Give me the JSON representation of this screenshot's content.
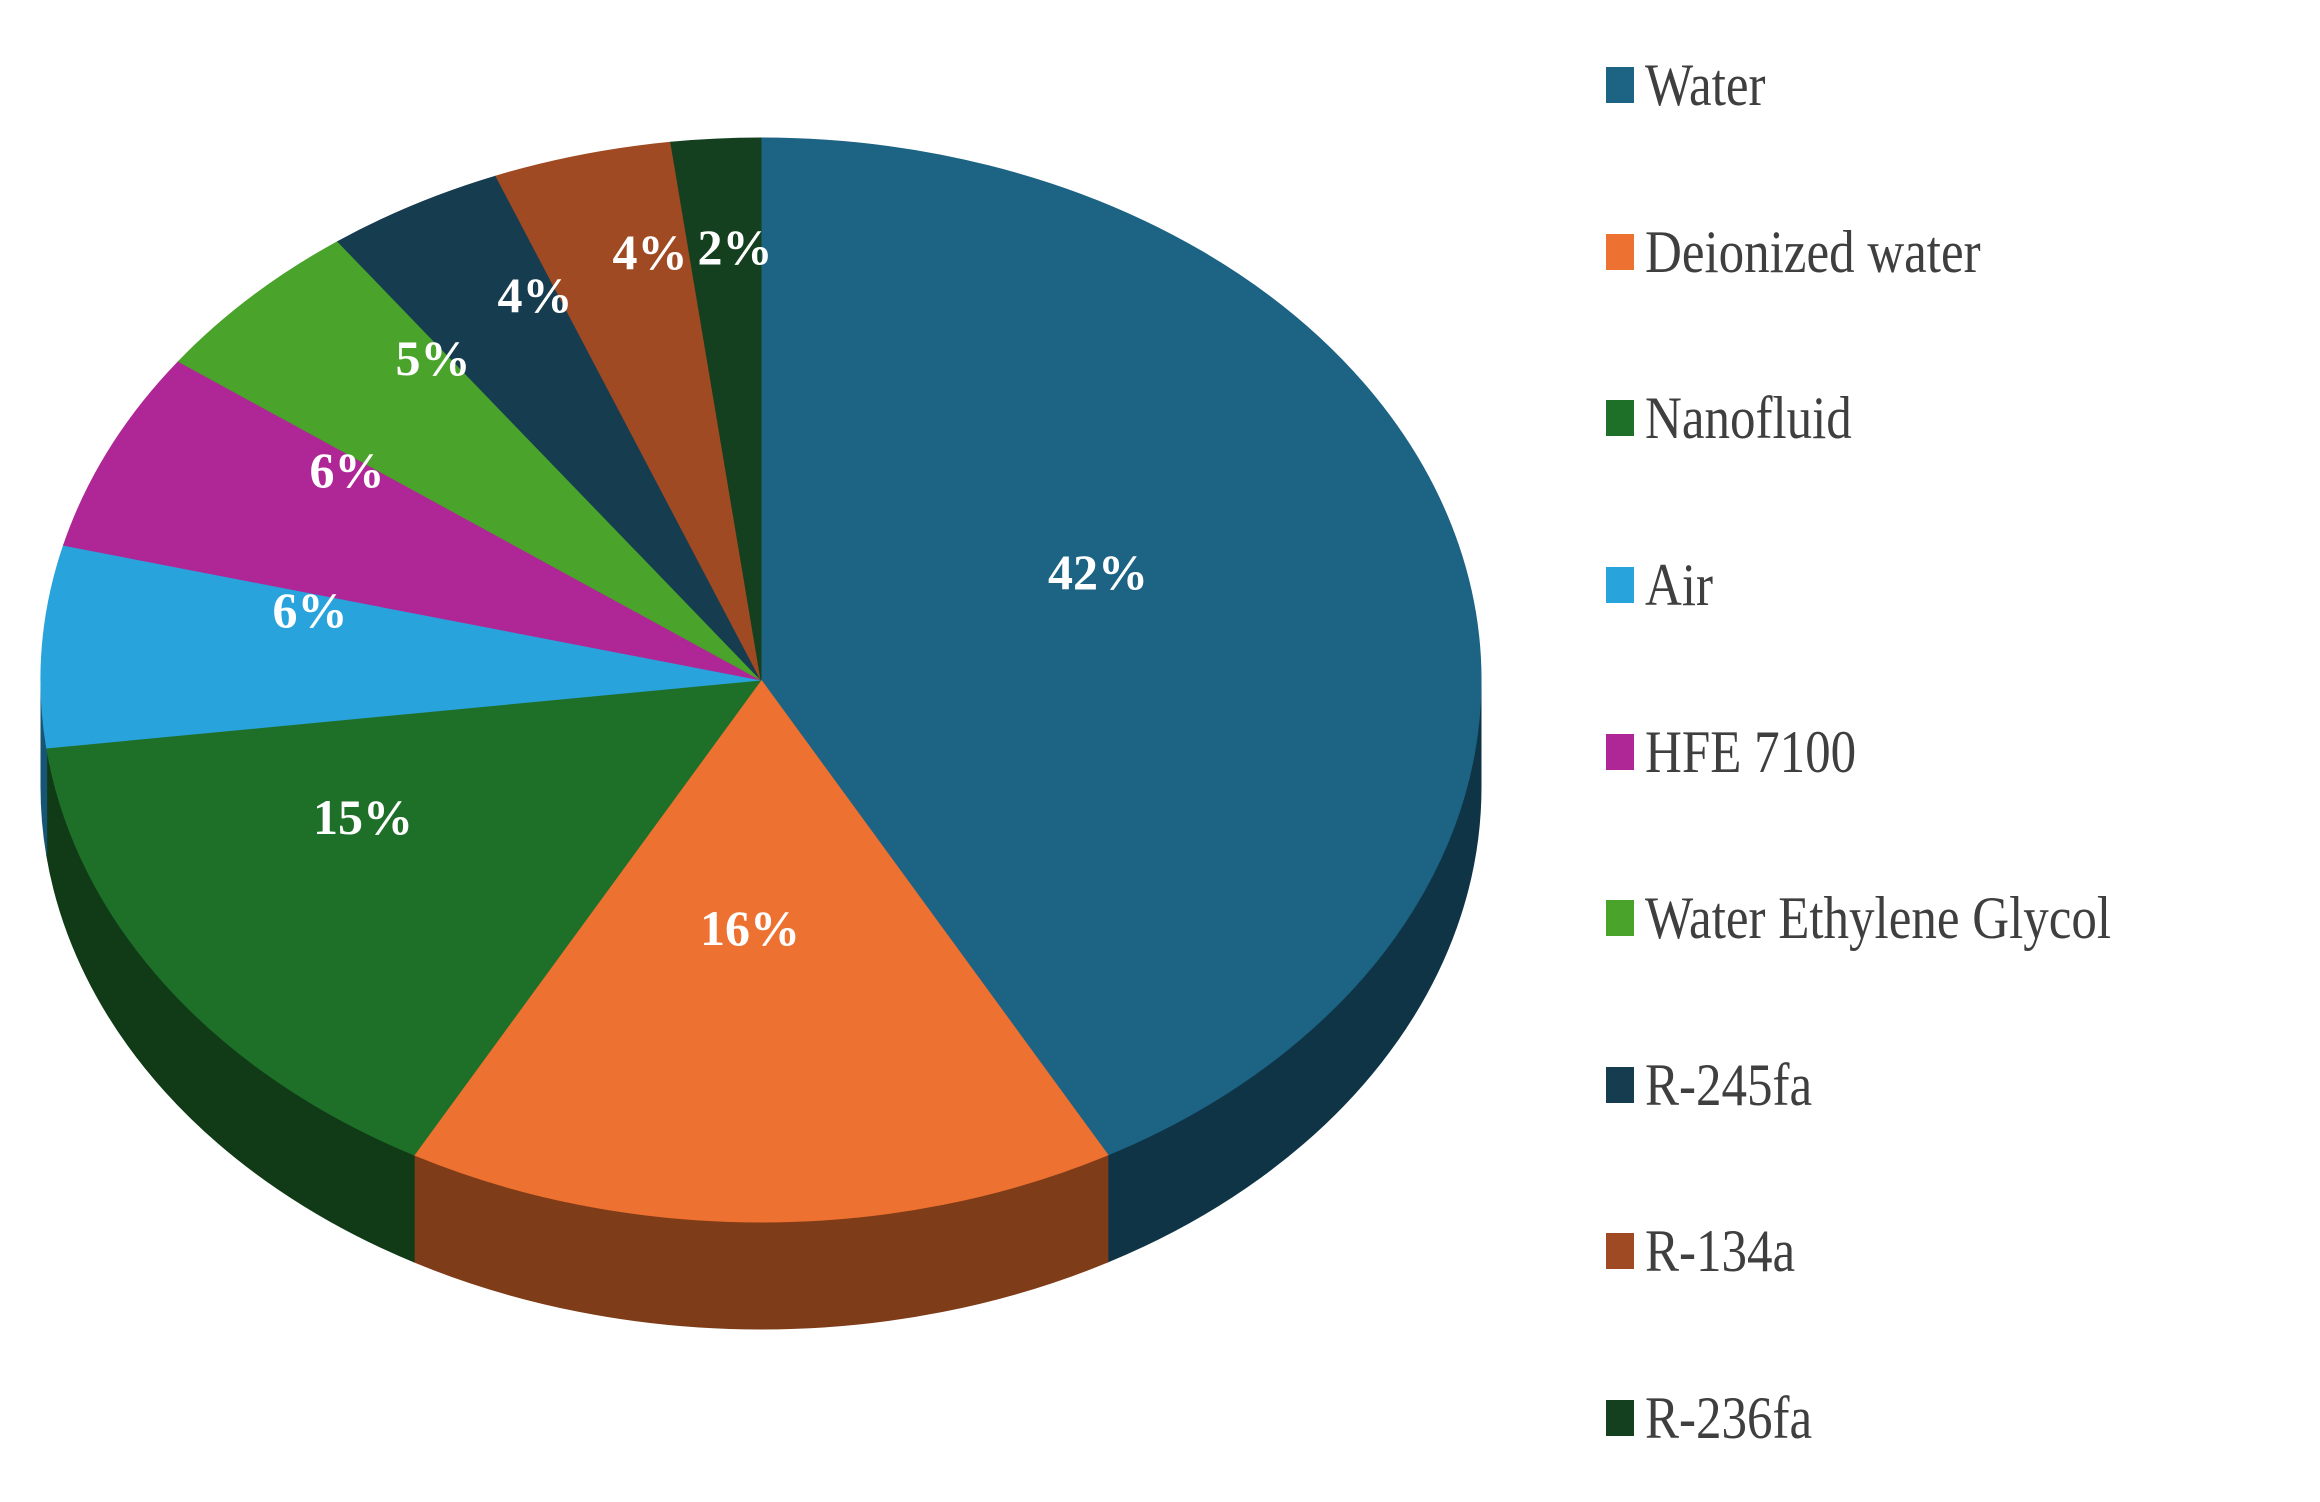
{
  "chart_data": {
    "type": "pie",
    "style": "3d",
    "categories": [
      "Water",
      "Deionized water",
      "Nanofluid",
      "Air",
      "HFE 7100",
      "Water Ethylene Glycol",
      "R-245fa",
      "R-134a",
      "R-236fa"
    ],
    "values": [
      42,
      16,
      15,
      6,
      6,
      5,
      4,
      4,
      2
    ],
    "labels": [
      "42%",
      "16%",
      "15%",
      "6%",
      "6%",
      "5%",
      "4%",
      "4%",
      "2%"
    ],
    "colors": [
      "#1C6384",
      "#ED7130",
      "#1E7029",
      "#29A3DB",
      "#AF2796",
      "#4AA32A",
      "#163C50",
      "#A04A23",
      "#154020"
    ],
    "unit": "%",
    "start_angle_deg": 0,
    "direction": "clockwise",
    "legend_position": "right",
    "data_label_color": "#FFFFFF",
    "legend_text_color": "#3F3F3F",
    "background": "#FFFFFF"
  }
}
